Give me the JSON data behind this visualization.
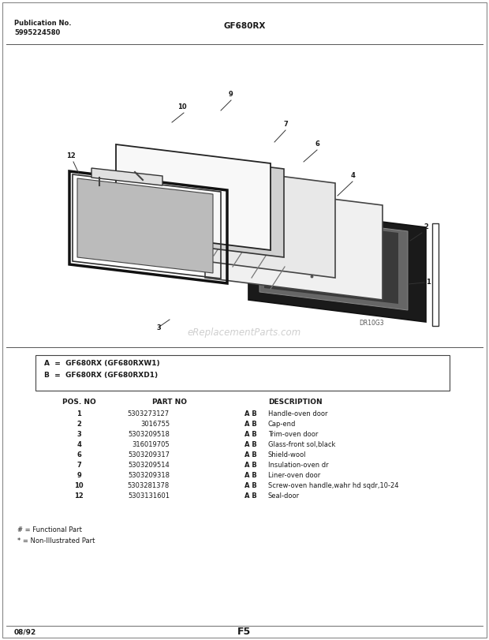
{
  "title_center": "GF680RX",
  "pub_no_label": "Publication No.",
  "pub_no_value": "5995224580",
  "page_label": "F5",
  "date_label": "08/92",
  "watermark": "eReplacementParts.com",
  "diagram_label": "DR10G3",
  "model_box_lines": [
    "A  =  GF680RX (GF680RXW1)",
    "B  =  GF680RX (GF680RXD1)"
  ],
  "table_rows": [
    [
      "1",
      "5303273127",
      "A B",
      "Handle-oven door"
    ],
    [
      "2",
      "3016755",
      "A B",
      "Cap-end"
    ],
    [
      "3",
      "5303209518",
      "A B",
      "Trim-oven door"
    ],
    [
      "4",
      "316019705",
      "A B",
      "Glass-front sol,black"
    ],
    [
      "6",
      "5303209317",
      "A B",
      "Shield-wool"
    ],
    [
      "7",
      "5303209514",
      "A B",
      "Insulation-oven dr"
    ],
    [
      "9",
      "5303209318",
      "A B",
      "Liner-oven door"
    ],
    [
      "10",
      "5303281378",
      "A B",
      "Screw-oven handle,wahr hd sqdr,10-24"
    ],
    [
      "12",
      "5303131601",
      "A B",
      "Seal-door"
    ]
  ],
  "footnotes": [
    "# = Functional Part",
    "* = Non-Illustrated Part"
  ],
  "bg_color": "#ffffff",
  "text_color": "#1a1a1a"
}
